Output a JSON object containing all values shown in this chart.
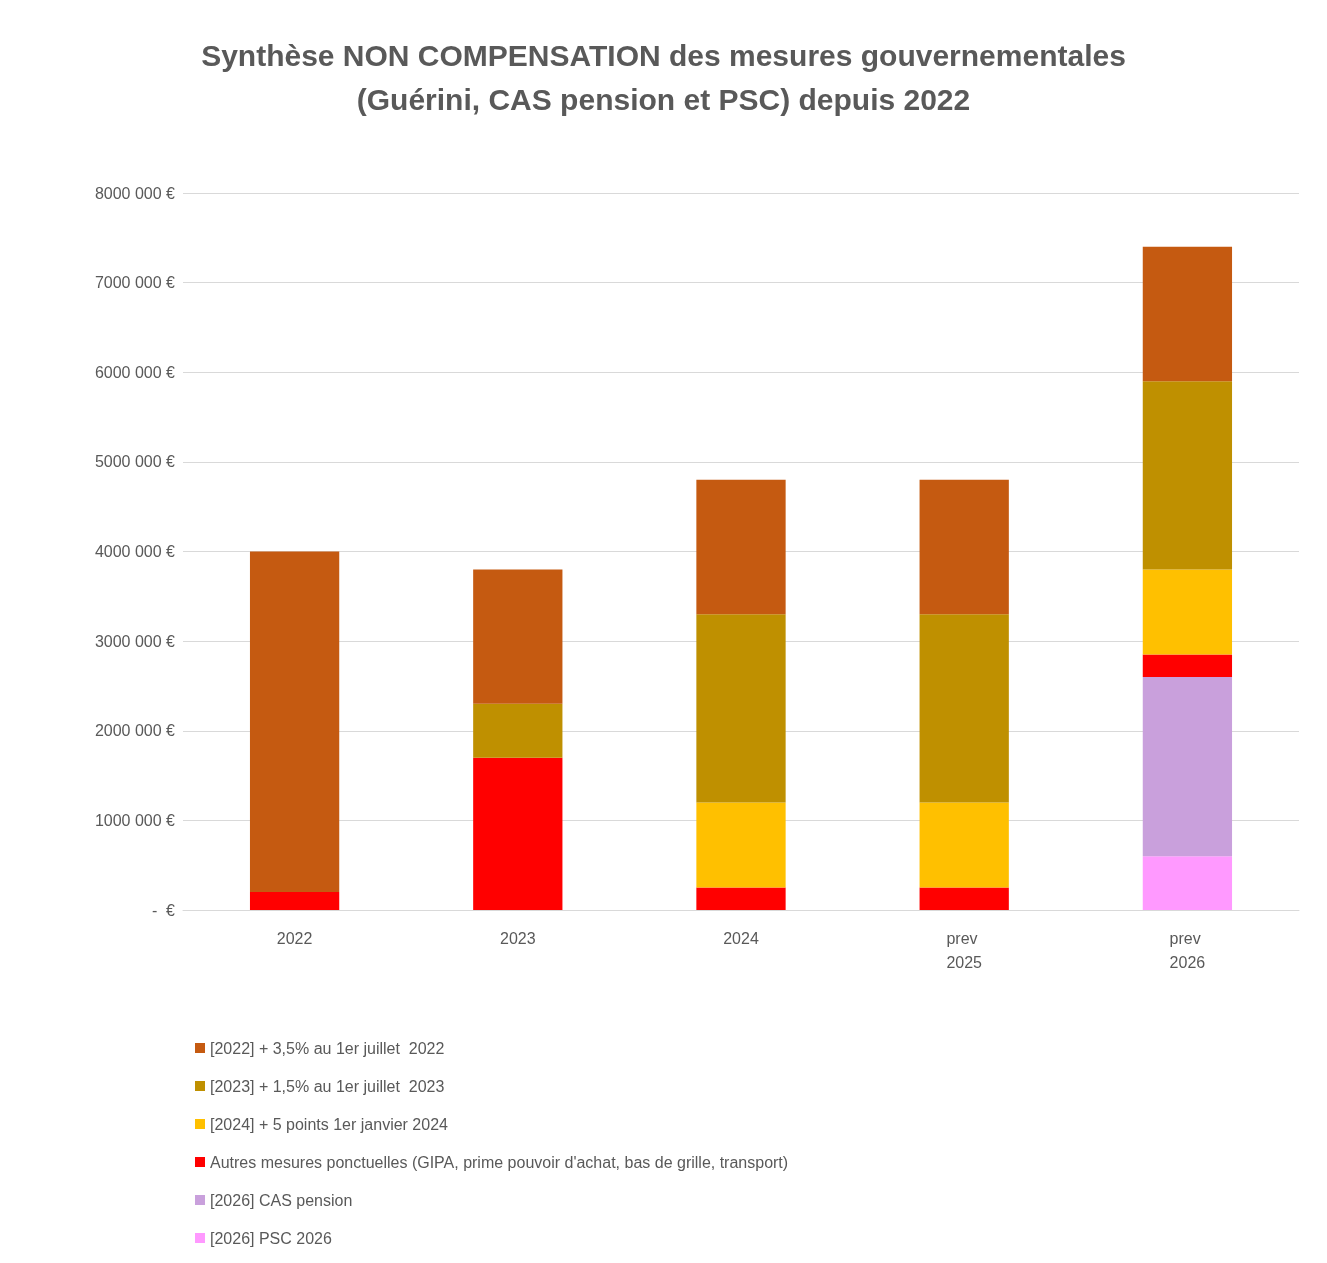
{
  "chart_data": {
    "type": "bar",
    "title": "Synthèse NON COMPENSATION des mesures gouvernementales\n(Guérini, CAS pension et PSC) depuis 2022",
    "categories": [
      "2022",
      "2023",
      "2024",
      "prev 2025",
      "prev 2026"
    ],
    "stacked": true,
    "series": [
      {
        "name": "[2026] PSC 2026",
        "color": "#ff99ff",
        "values": [
          0,
          0,
          0,
          0,
          600000
        ]
      },
      {
        "name": "[2026] CAS pension",
        "color": "#c9a0dc",
        "values": [
          0,
          0,
          0,
          0,
          2000000
        ]
      },
      {
        "name": "Autres mesures ponctuelles (GIPA, prime pouvoir d'achat, bas de grille, transport)",
        "color": "#ff0000",
        "values": [
          200000,
          1700000,
          250000,
          250000,
          250000
        ]
      },
      {
        "name": "[2024] + 5 points 1er janvier 2024",
        "color": "#ffc000",
        "values": [
          0,
          0,
          950000,
          950000,
          950000
        ]
      },
      {
        "name": "[2023] + 1,5% au 1er juillet  2023",
        "color": "#bf9000",
        "values": [
          0,
          600000,
          2100000,
          2100000,
          2100000
        ]
      },
      {
        "name": "[2022] + 3,5% au 1er juillet  2022",
        "color": "#c55a11",
        "values": [
          3800000,
          1500000,
          1500000,
          1500000,
          1500000
        ]
      }
    ],
    "ylim": [
      0,
      8000000
    ],
    "yticks": [
      {
        "value": 0,
        "label": "-  €"
      },
      {
        "value": 1000000,
        "label": "1000 000 €"
      },
      {
        "value": 2000000,
        "label": "2000 000 €"
      },
      {
        "value": 3000000,
        "label": "3000 000 €"
      },
      {
        "value": 4000000,
        "label": "4000 000 €"
      },
      {
        "value": 5000000,
        "label": "5000 000 €"
      },
      {
        "value": 6000000,
        "label": "6000 000 €"
      },
      {
        "value": 7000000,
        "label": "7000 000 €"
      },
      {
        "value": 8000000,
        "label": "8000 000 €"
      }
    ],
    "grid": "y",
    "legend": "bottom"
  }
}
